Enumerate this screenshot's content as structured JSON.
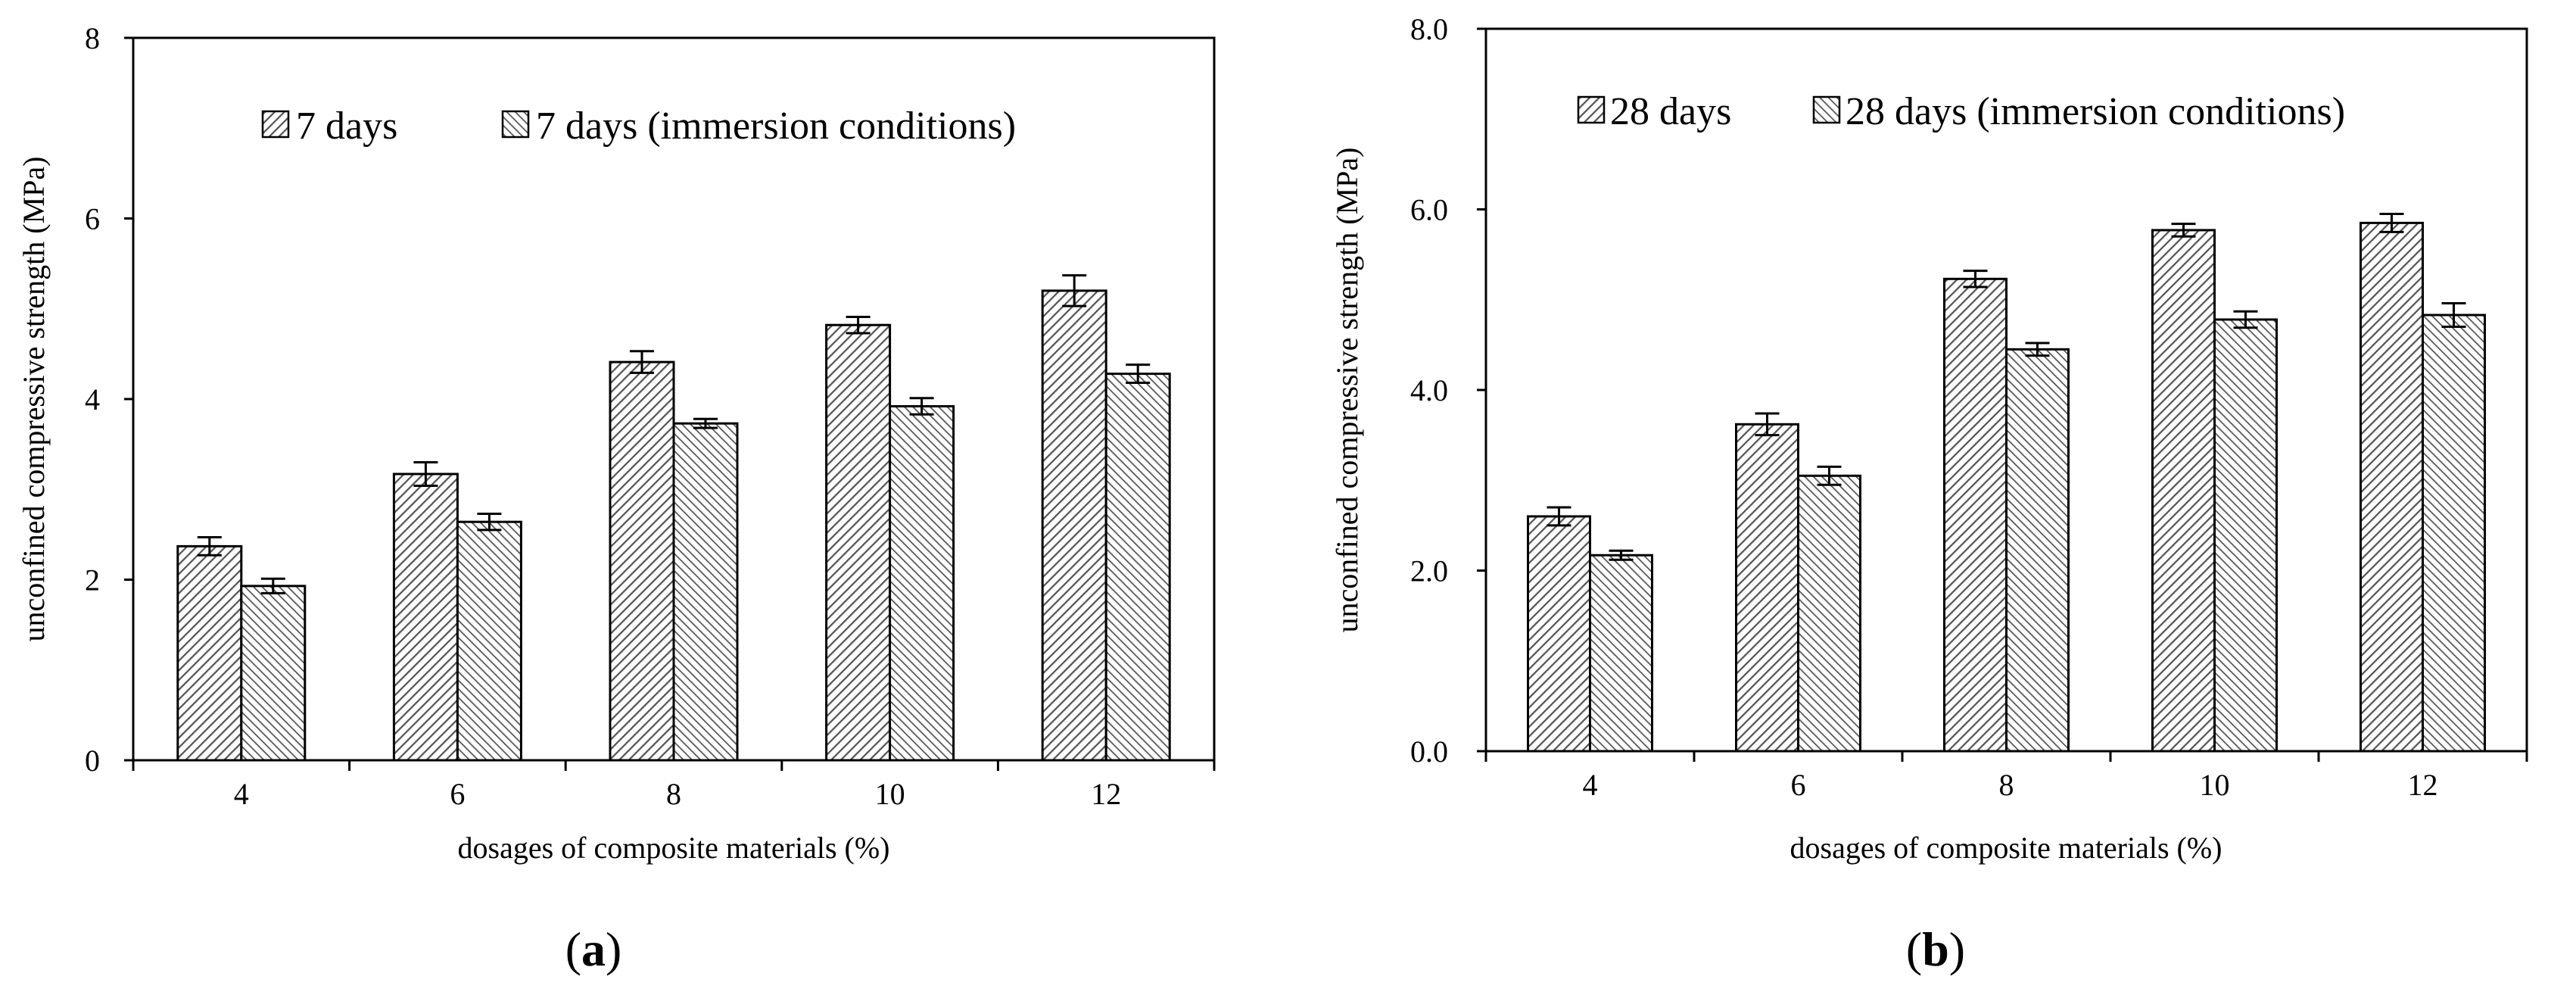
{
  "colors": {
    "bar_fill": "#ffffff",
    "hatch": "#555555",
    "stroke": "#000000"
  },
  "panels": [
    {
      "label_prefix": "(",
      "label_letter": "a",
      "label_suffix": ")"
    },
    {
      "label_prefix": "(",
      "label_letter": "b",
      "label_suffix": ")"
    }
  ],
  "chart_data": [
    {
      "type": "bar",
      "categories": [
        "4",
        "6",
        "8",
        "10",
        "12"
      ],
      "series": [
        {
          "name": "7 days",
          "values": [
            2.37,
            3.17,
            4.41,
            4.82,
            5.2
          ],
          "errors": [
            0.1,
            0.13,
            0.12,
            0.09,
            0.17
          ],
          "hatch": "dense"
        },
        {
          "name": "7 days (immersion conditions)",
          "values": [
            1.93,
            2.64,
            3.73,
            3.92,
            4.28
          ],
          "errors": [
            0.08,
            0.09,
            0.05,
            0.09,
            0.1
          ],
          "hatch": "fine"
        }
      ],
      "xlabel": "dosages of composite materials  (%)",
      "ylabel": "unconfined compressive strength  (MPa)",
      "ylim": [
        0,
        8
      ],
      "yticks": [
        "0",
        "2",
        "4",
        "6",
        "8"
      ],
      "ytick_values": [
        0,
        2,
        4,
        6,
        8
      ],
      "legend": "top-right",
      "grid": false
    },
    {
      "type": "bar",
      "categories": [
        "4",
        "6",
        "8",
        "10",
        "12"
      ],
      "series": [
        {
          "name": "28 days",
          "values": [
            2.6,
            3.62,
            5.23,
            5.77,
            5.85
          ],
          "errors": [
            0.1,
            0.12,
            0.09,
            0.07,
            0.1
          ],
          "hatch": "dense"
        },
        {
          "name": "28 days (immersion conditions)",
          "values": [
            2.17,
            3.05,
            4.45,
            4.78,
            4.83
          ],
          "errors": [
            0.05,
            0.1,
            0.07,
            0.09,
            0.13
          ],
          "hatch": "fine"
        }
      ],
      "xlabel": "dosages of composite materials  (%)",
      "ylabel": "unconfined compressive strength  (MPa)",
      "ylim": [
        0,
        8
      ],
      "yticks": [
        "0.0",
        "2.0",
        "4.0",
        "6.0",
        "8.0"
      ],
      "ytick_values": [
        0,
        2,
        4,
        6,
        8
      ],
      "legend": "top-right",
      "grid": false
    }
  ]
}
